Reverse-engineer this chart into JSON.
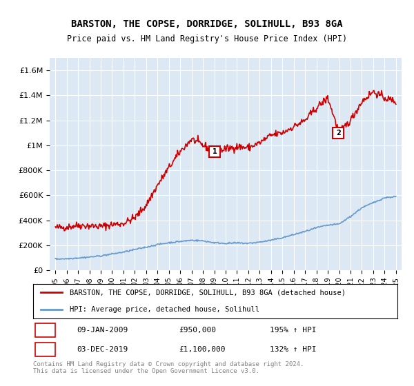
{
  "title": "BARSTON, THE COPSE, DORRIDGE, SOLIHULL, B93 8GA",
  "subtitle": "Price paid vs. HM Land Registry's House Price Index (HPI)",
  "background_color": "#dce9f5",
  "plot_bg_color": "#dce9f5",
  "ylim": [
    0,
    1700000
  ],
  "yticks": [
    0,
    200000,
    400000,
    600000,
    800000,
    1000000,
    1200000,
    1400000,
    1600000
  ],
  "ytick_labels": [
    "£0",
    "£200K",
    "£400K",
    "£600K",
    "£800K",
    "£1M",
    "£1.2M",
    "£1.4M",
    "£1.6M"
  ],
  "x_start_year": 1995,
  "x_end_year": 2025,
  "red_line_color": "#cc0000",
  "blue_line_color": "#6699cc",
  "marker1_date_idx": 14,
  "marker1_value": 950000,
  "marker1_label": "1",
  "marker1_date_str": "09-JAN-2009",
  "marker1_price_str": "£950,000",
  "marker1_hpi_str": "195% ↑ HPI",
  "marker2_date_idx": 25,
  "marker2_value": 1100000,
  "marker2_label": "2",
  "marker2_date_str": "03-DEC-2019",
  "marker2_price_str": "£1,100,000",
  "marker2_hpi_str": "132% ↑ HPI",
  "legend_red_label": "BARSTON, THE COPSE, DORRIDGE, SOLIHULL, B93 8GA (detached house)",
  "legend_blue_label": "HPI: Average price, detached house, Solihull",
  "footer_text": "Contains HM Land Registry data © Crown copyright and database right 2024.\nThis data is licensed under the Open Government Licence v3.0.",
  "red_x": [
    1995,
    1996,
    1997,
    1998,
    1999,
    2000,
    2001,
    2002,
    2003,
    2004,
    2005,
    2006,
    2007,
    2008,
    2009,
    2010,
    2011,
    2012,
    2013,
    2014,
    2015,
    2016,
    2017,
    2018,
    2019,
    2020,
    2021,
    2022,
    2023,
    2024,
    2025
  ],
  "red_y": [
    340000,
    345000,
    360000,
    355000,
    350000,
    365000,
    375000,
    420000,
    520000,
    680000,
    820000,
    950000,
    1050000,
    1000000,
    950000,
    970000,
    990000,
    980000,
    1020000,
    1080000,
    1100000,
    1150000,
    1200000,
    1300000,
    1380000,
    1100000,
    1200000,
    1350000,
    1430000,
    1380000,
    1350000
  ],
  "blue_x": [
    1995,
    1996,
    1997,
    1998,
    1999,
    2000,
    2001,
    2002,
    2003,
    2004,
    2005,
    2006,
    2007,
    2008,
    2009,
    2010,
    2011,
    2012,
    2013,
    2014,
    2015,
    2016,
    2017,
    2018,
    2019,
    2020,
    2021,
    2022,
    2023,
    2024,
    2025
  ],
  "blue_y": [
    90000,
    92000,
    98000,
    105000,
    115000,
    130000,
    145000,
    165000,
    185000,
    205000,
    220000,
    230000,
    240000,
    235000,
    220000,
    215000,
    218000,
    215000,
    225000,
    240000,
    260000,
    285000,
    310000,
    340000,
    360000,
    370000,
    430000,
    500000,
    540000,
    580000,
    590000
  ]
}
